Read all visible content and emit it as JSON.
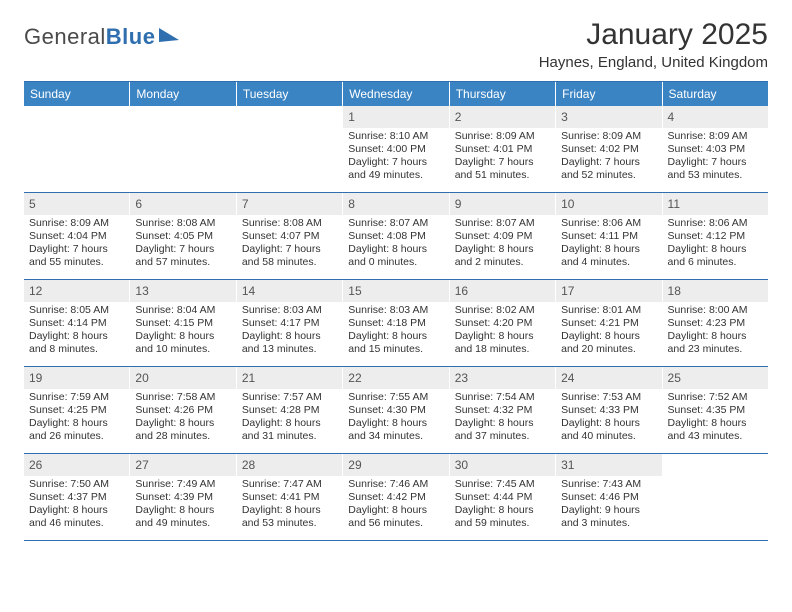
{
  "logo": {
    "word1": "General",
    "word2": "Blue"
  },
  "header": {
    "month_title": "January 2025",
    "location": "Haynes, England, United Kingdom"
  },
  "style": {
    "accent_color": "#3b84c4",
    "rule_color": "#2f6fb0",
    "daynum_bg": "#ededed",
    "text_color": "#333333",
    "page_bg": "#ffffff",
    "title_fontsize": 30,
    "weekday_fontsize": 12,
    "body_fontsize": 10.5
  },
  "weekdays": [
    "Sunday",
    "Monday",
    "Tuesday",
    "Wednesday",
    "Thursday",
    "Friday",
    "Saturday"
  ],
  "weeks": [
    [
      {
        "n": "",
        "sr": "",
        "ss": "",
        "d1": "",
        "d2": ""
      },
      {
        "n": "",
        "sr": "",
        "ss": "",
        "d1": "",
        "d2": ""
      },
      {
        "n": "",
        "sr": "",
        "ss": "",
        "d1": "",
        "d2": ""
      },
      {
        "n": "1",
        "sr": "Sunrise: 8:10 AM",
        "ss": "Sunset: 4:00 PM",
        "d1": "Daylight: 7 hours",
        "d2": "and 49 minutes."
      },
      {
        "n": "2",
        "sr": "Sunrise: 8:09 AM",
        "ss": "Sunset: 4:01 PM",
        "d1": "Daylight: 7 hours",
        "d2": "and 51 minutes."
      },
      {
        "n": "3",
        "sr": "Sunrise: 8:09 AM",
        "ss": "Sunset: 4:02 PM",
        "d1": "Daylight: 7 hours",
        "d2": "and 52 minutes."
      },
      {
        "n": "4",
        "sr": "Sunrise: 8:09 AM",
        "ss": "Sunset: 4:03 PM",
        "d1": "Daylight: 7 hours",
        "d2": "and 53 minutes."
      }
    ],
    [
      {
        "n": "5",
        "sr": "Sunrise: 8:09 AM",
        "ss": "Sunset: 4:04 PM",
        "d1": "Daylight: 7 hours",
        "d2": "and 55 minutes."
      },
      {
        "n": "6",
        "sr": "Sunrise: 8:08 AM",
        "ss": "Sunset: 4:05 PM",
        "d1": "Daylight: 7 hours",
        "d2": "and 57 minutes."
      },
      {
        "n": "7",
        "sr": "Sunrise: 8:08 AM",
        "ss": "Sunset: 4:07 PM",
        "d1": "Daylight: 7 hours",
        "d2": "and 58 minutes."
      },
      {
        "n": "8",
        "sr": "Sunrise: 8:07 AM",
        "ss": "Sunset: 4:08 PM",
        "d1": "Daylight: 8 hours",
        "d2": "and 0 minutes."
      },
      {
        "n": "9",
        "sr": "Sunrise: 8:07 AM",
        "ss": "Sunset: 4:09 PM",
        "d1": "Daylight: 8 hours",
        "d2": "and 2 minutes."
      },
      {
        "n": "10",
        "sr": "Sunrise: 8:06 AM",
        "ss": "Sunset: 4:11 PM",
        "d1": "Daylight: 8 hours",
        "d2": "and 4 minutes."
      },
      {
        "n": "11",
        "sr": "Sunrise: 8:06 AM",
        "ss": "Sunset: 4:12 PM",
        "d1": "Daylight: 8 hours",
        "d2": "and 6 minutes."
      }
    ],
    [
      {
        "n": "12",
        "sr": "Sunrise: 8:05 AM",
        "ss": "Sunset: 4:14 PM",
        "d1": "Daylight: 8 hours",
        "d2": "and 8 minutes."
      },
      {
        "n": "13",
        "sr": "Sunrise: 8:04 AM",
        "ss": "Sunset: 4:15 PM",
        "d1": "Daylight: 8 hours",
        "d2": "and 10 minutes."
      },
      {
        "n": "14",
        "sr": "Sunrise: 8:03 AM",
        "ss": "Sunset: 4:17 PM",
        "d1": "Daylight: 8 hours",
        "d2": "and 13 minutes."
      },
      {
        "n": "15",
        "sr": "Sunrise: 8:03 AM",
        "ss": "Sunset: 4:18 PM",
        "d1": "Daylight: 8 hours",
        "d2": "and 15 minutes."
      },
      {
        "n": "16",
        "sr": "Sunrise: 8:02 AM",
        "ss": "Sunset: 4:20 PM",
        "d1": "Daylight: 8 hours",
        "d2": "and 18 minutes."
      },
      {
        "n": "17",
        "sr": "Sunrise: 8:01 AM",
        "ss": "Sunset: 4:21 PM",
        "d1": "Daylight: 8 hours",
        "d2": "and 20 minutes."
      },
      {
        "n": "18",
        "sr": "Sunrise: 8:00 AM",
        "ss": "Sunset: 4:23 PM",
        "d1": "Daylight: 8 hours",
        "d2": "and 23 minutes."
      }
    ],
    [
      {
        "n": "19",
        "sr": "Sunrise: 7:59 AM",
        "ss": "Sunset: 4:25 PM",
        "d1": "Daylight: 8 hours",
        "d2": "and 26 minutes."
      },
      {
        "n": "20",
        "sr": "Sunrise: 7:58 AM",
        "ss": "Sunset: 4:26 PM",
        "d1": "Daylight: 8 hours",
        "d2": "and 28 minutes."
      },
      {
        "n": "21",
        "sr": "Sunrise: 7:57 AM",
        "ss": "Sunset: 4:28 PM",
        "d1": "Daylight: 8 hours",
        "d2": "and 31 minutes."
      },
      {
        "n": "22",
        "sr": "Sunrise: 7:55 AM",
        "ss": "Sunset: 4:30 PM",
        "d1": "Daylight: 8 hours",
        "d2": "and 34 minutes."
      },
      {
        "n": "23",
        "sr": "Sunrise: 7:54 AM",
        "ss": "Sunset: 4:32 PM",
        "d1": "Daylight: 8 hours",
        "d2": "and 37 minutes."
      },
      {
        "n": "24",
        "sr": "Sunrise: 7:53 AM",
        "ss": "Sunset: 4:33 PM",
        "d1": "Daylight: 8 hours",
        "d2": "and 40 minutes."
      },
      {
        "n": "25",
        "sr": "Sunrise: 7:52 AM",
        "ss": "Sunset: 4:35 PM",
        "d1": "Daylight: 8 hours",
        "d2": "and 43 minutes."
      }
    ],
    [
      {
        "n": "26",
        "sr": "Sunrise: 7:50 AM",
        "ss": "Sunset: 4:37 PM",
        "d1": "Daylight: 8 hours",
        "d2": "and 46 minutes."
      },
      {
        "n": "27",
        "sr": "Sunrise: 7:49 AM",
        "ss": "Sunset: 4:39 PM",
        "d1": "Daylight: 8 hours",
        "d2": "and 49 minutes."
      },
      {
        "n": "28",
        "sr": "Sunrise: 7:47 AM",
        "ss": "Sunset: 4:41 PM",
        "d1": "Daylight: 8 hours",
        "d2": "and 53 minutes."
      },
      {
        "n": "29",
        "sr": "Sunrise: 7:46 AM",
        "ss": "Sunset: 4:42 PM",
        "d1": "Daylight: 8 hours",
        "d2": "and 56 minutes."
      },
      {
        "n": "30",
        "sr": "Sunrise: 7:45 AM",
        "ss": "Sunset: 4:44 PM",
        "d1": "Daylight: 8 hours",
        "d2": "and 59 minutes."
      },
      {
        "n": "31",
        "sr": "Sunrise: 7:43 AM",
        "ss": "Sunset: 4:46 PM",
        "d1": "Daylight: 9 hours",
        "d2": "and 3 minutes."
      },
      {
        "n": "",
        "sr": "",
        "ss": "",
        "d1": "",
        "d2": ""
      }
    ]
  ]
}
